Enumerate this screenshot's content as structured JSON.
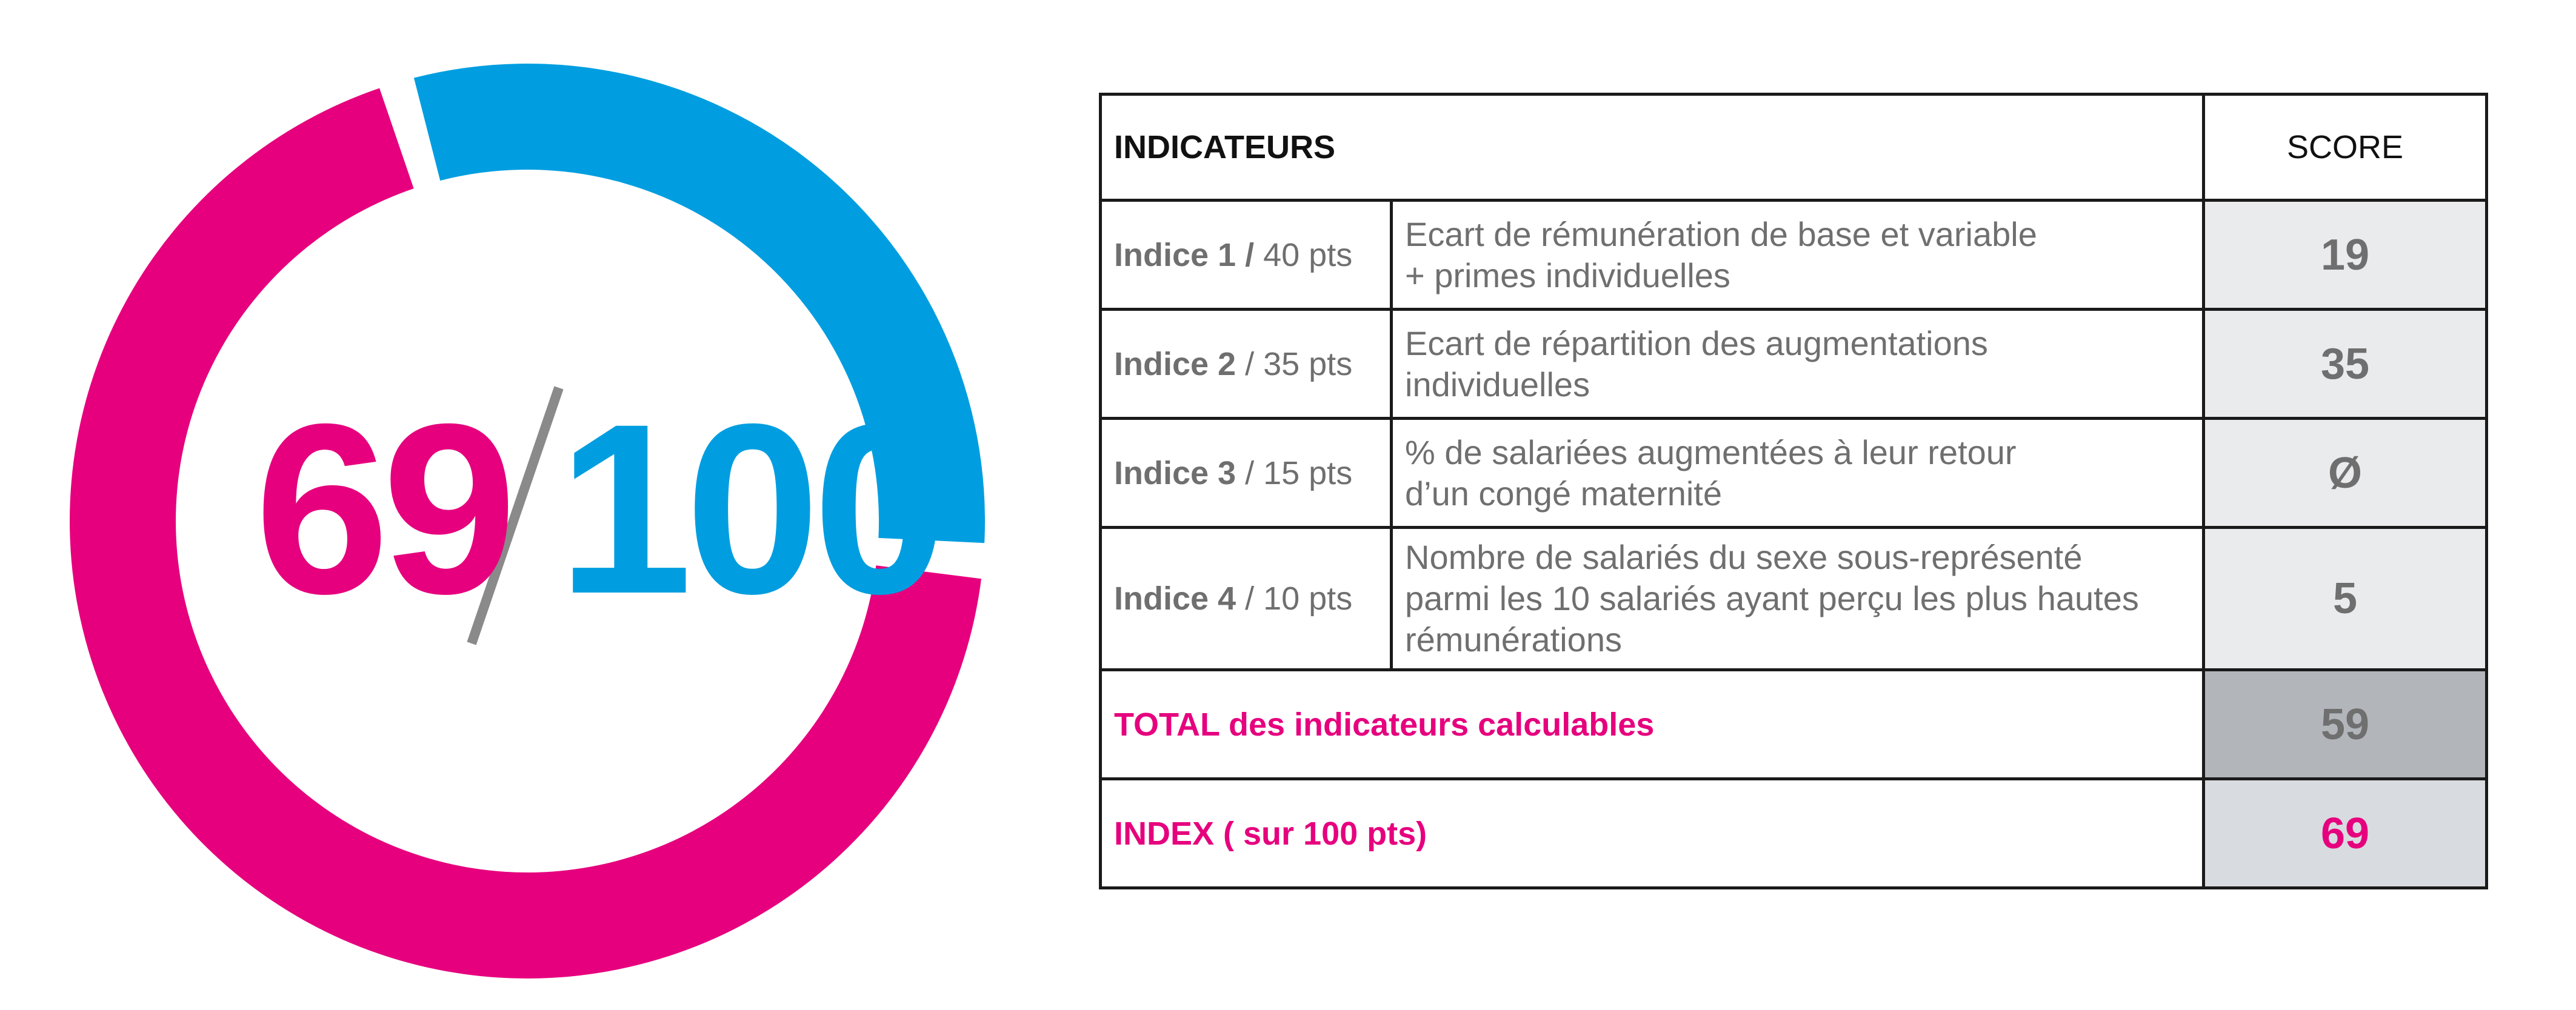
{
  "colors": {
    "pink": "#e6007e",
    "blue": "#009ee0",
    "grey_text": "#6f6f6f",
    "slash": "#8a8a8a"
  },
  "chart_data": {
    "type": "pie",
    "variant": "donut",
    "values": [
      69,
      31
    ],
    "colors": [
      "#e6007e",
      "#009ee0"
    ],
    "total": 100,
    "center_text": {
      "numerator": "69",
      "denominator": "100"
    }
  },
  "table": {
    "header": {
      "label": "INDICATEURS",
      "score": "SCORE"
    },
    "rows": [
      {
        "name": "Indice 1 /",
        "pts": " 40 pts",
        "desc": [
          "Ecart de rémunération de base et variable",
          "+ primes individuelles"
        ],
        "score": "19"
      },
      {
        "name": "Indice 2",
        "pts": " / 35 pts",
        "desc": [
          "Ecart de répartition des augmentations",
          "individuelles"
        ],
        "score": "35"
      },
      {
        "name": "Indice 3",
        "pts": " / 15 pts",
        "desc": [
          "% de salariées augmentées à leur retour",
          "d’un congé maternité"
        ],
        "score": "Ø"
      },
      {
        "name": "Indice 4",
        "pts": " / 10 pts",
        "desc": [
          "Nombre de salariés du sexe sous-représenté",
          "parmi les 10 salariés ayant perçu les plus hautes",
          "rémunérations"
        ],
        "score": "5"
      }
    ],
    "total": {
      "label": "TOTAL des indicateurs calculables",
      "score": "59"
    },
    "index": {
      "label": "INDEX ( sur 100 pts)",
      "score": "69"
    }
  }
}
